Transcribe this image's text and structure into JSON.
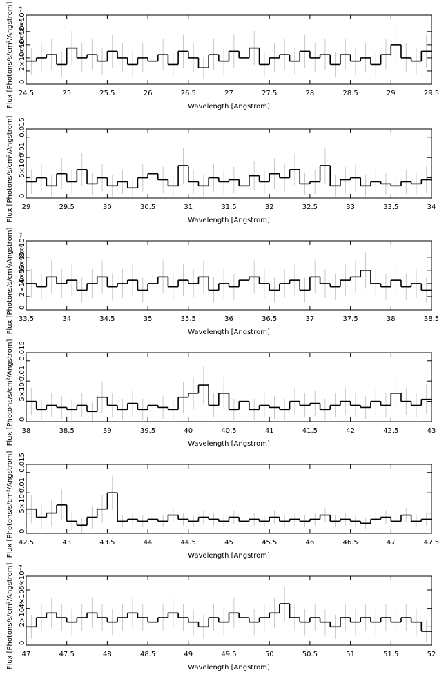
{
  "chart_data": [
    {
      "type": "histogram",
      "xlabel": "Wavelength [Angstrom]",
      "ylabel": "Flux [Photons/s/cm²/Angstrom]",
      "color": "#000000",
      "error_color": "#c8c8c8",
      "xlim": [
        24.5,
        29.5
      ],
      "xticks": [
        24.5,
        25,
        25.5,
        26,
        26.5,
        27,
        27.5,
        28,
        28.5,
        29,
        29.5
      ],
      "ylim": [
        0,
        0.0105
      ],
      "yticks": [
        0,
        {
          "value": 0.002,
          "label": "2×10⁻³"
        },
        {
          "value": 0.004,
          "label": "4×10⁻³"
        },
        {
          "value": 0.006,
          "label": "6×10⁻³"
        },
        {
          "value": 0.008,
          "label": "8×10⁻³"
        }
      ],
      "bins": [
        24.5,
        24.625,
        24.75,
        24.875,
        25,
        25.125,
        25.25,
        25.375,
        25.5,
        25.625,
        25.75,
        25.875,
        26,
        26.125,
        26.25,
        26.375,
        26.5,
        26.625,
        26.75,
        26.875,
        27,
        27.125,
        27.25,
        27.375,
        27.5,
        27.625,
        27.75,
        27.875,
        28,
        28.125,
        28.25,
        28.375,
        28.5,
        28.625,
        28.75,
        28.875,
        29,
        29.125,
        29.25,
        29.375,
        29.5
      ],
      "values": [
        0.0035,
        0.004,
        0.0045,
        0.003,
        0.0055,
        0.004,
        0.0045,
        0.0035,
        0.005,
        0.004,
        0.003,
        0.004,
        0.0035,
        0.0045,
        0.003,
        0.005,
        0.004,
        0.0025,
        0.0045,
        0.0035,
        0.005,
        0.004,
        0.0055,
        0.003,
        0.004,
        0.0045,
        0.0035,
        0.005,
        0.004,
        0.0045,
        0.003,
        0.0045,
        0.0035,
        0.004,
        0.003,
        0.0045,
        0.006,
        0.004,
        0.0035,
        0.005
      ],
      "errors": [
        0.002,
        0.0022,
        0.0024,
        0.0019,
        0.0026,
        0.0022,
        0.0023,
        0.002,
        0.0025,
        0.0022,
        0.0019,
        0.0022,
        0.002,
        0.0024,
        0.0019,
        0.0025,
        0.0022,
        0.0017,
        0.0024,
        0.002,
        0.0025,
        0.0022,
        0.0026,
        0.0019,
        0.0022,
        0.0024,
        0.002,
        0.0025,
        0.0022,
        0.0024,
        0.0019,
        0.0024,
        0.002,
        0.0022,
        0.0019,
        0.0024,
        0.0028,
        0.0022,
        0.002,
        0.0025
      ]
    },
    {
      "type": "histogram",
      "xlabel": "Wavelength [Angstrom]",
      "ylabel": "Flux [Photons/s/cm²/Angstrom]",
      "color": "#000000",
      "error_color": "#c8c8c8",
      "xlim": [
        29,
        34
      ],
      "xticks": [
        29,
        29.5,
        30,
        30.5,
        31,
        31.5,
        32,
        32.5,
        33,
        33.5,
        34
      ],
      "ylim": [
        0,
        0.017
      ],
      "yticks": [
        0,
        {
          "value": 0.005,
          "label": "5×10⁻³"
        },
        0.01,
        0.015
      ],
      "bins": [
        29,
        29.125,
        29.25,
        29.375,
        29.5,
        29.625,
        29.75,
        29.875,
        30,
        30.125,
        30.25,
        30.375,
        30.5,
        30.625,
        30.75,
        30.875,
        31,
        31.125,
        31.25,
        31.375,
        31.5,
        31.625,
        31.75,
        31.875,
        32,
        32.125,
        32.25,
        32.375,
        32.5,
        32.625,
        32.75,
        32.875,
        33,
        33.125,
        33.25,
        33.375,
        33.5,
        33.625,
        33.75,
        33.875,
        34
      ],
      "values": [
        0.004,
        0.005,
        0.003,
        0.006,
        0.004,
        0.007,
        0.0035,
        0.005,
        0.003,
        0.004,
        0.0025,
        0.005,
        0.006,
        0.0045,
        0.003,
        0.008,
        0.004,
        0.003,
        0.005,
        0.004,
        0.0045,
        0.003,
        0.0055,
        0.004,
        0.006,
        0.005,
        0.007,
        0.0035,
        0.004,
        0.008,
        0.003,
        0.0045,
        0.005,
        0.003,
        0.004,
        0.0035,
        0.003,
        0.004,
        0.0035,
        0.0045
      ],
      "errors": [
        0.003,
        0.0034,
        0.0026,
        0.0038,
        0.003,
        0.004,
        0.0028,
        0.0034,
        0.0026,
        0.003,
        0.0024,
        0.0034,
        0.0038,
        0.0032,
        0.0026,
        0.0044,
        0.003,
        0.0026,
        0.0034,
        0.003,
        0.0032,
        0.0026,
        0.0036,
        0.003,
        0.0038,
        0.0034,
        0.004,
        0.0028,
        0.003,
        0.0044,
        0.0026,
        0.0032,
        0.0034,
        0.0026,
        0.003,
        0.0028,
        0.0026,
        0.003,
        0.0028,
        0.0032
      ]
    },
    {
      "type": "histogram",
      "xlabel": "Wavelength [Angstrom]",
      "ylabel": "Flux [Photons/s/cm²/Angstrom]",
      "color": "#000000",
      "error_color": "#c8c8c8",
      "xlim": [
        33.5,
        38.5
      ],
      "xticks": [
        33.5,
        34,
        34.5,
        35,
        35.5,
        36,
        36.5,
        37,
        37.5,
        38,
        38.5
      ],
      "ylim": [
        0,
        0.0105
      ],
      "yticks": [
        0,
        {
          "value": 0.002,
          "label": "2×10⁻³"
        },
        {
          "value": 0.004,
          "label": "4×10⁻³"
        },
        {
          "value": 0.006,
          "label": "6×10⁻³"
        },
        {
          "value": 0.008,
          "label": "8×10⁻³"
        }
      ],
      "bins": [
        33.5,
        33.625,
        33.75,
        33.875,
        34,
        34.125,
        34.25,
        34.375,
        34.5,
        34.625,
        34.75,
        34.875,
        35,
        35.125,
        35.25,
        35.375,
        35.5,
        35.625,
        35.75,
        35.875,
        36,
        36.125,
        36.25,
        36.375,
        36.5,
        36.625,
        36.75,
        36.875,
        37,
        37.125,
        37.25,
        37.375,
        37.5,
        37.625,
        37.75,
        37.875,
        38,
        38.125,
        38.25,
        38.375,
        38.5
      ],
      "values": [
        0.004,
        0.0035,
        0.005,
        0.004,
        0.0045,
        0.003,
        0.004,
        0.005,
        0.0035,
        0.004,
        0.0045,
        0.003,
        0.004,
        0.005,
        0.0035,
        0.0045,
        0.004,
        0.005,
        0.003,
        0.004,
        0.0035,
        0.0045,
        0.005,
        0.004,
        0.003,
        0.004,
        0.0045,
        0.003,
        0.005,
        0.004,
        0.0035,
        0.0045,
        0.005,
        0.006,
        0.004,
        0.0035,
        0.0045,
        0.0035,
        0.004,
        0.003
      ],
      "errors": [
        0.0022,
        0.002,
        0.0025,
        0.0022,
        0.0024,
        0.0019,
        0.0022,
        0.0025,
        0.002,
        0.0022,
        0.0024,
        0.0019,
        0.0022,
        0.0025,
        0.002,
        0.0024,
        0.0022,
        0.0025,
        0.0019,
        0.0022,
        0.002,
        0.0024,
        0.0025,
        0.0022,
        0.0019,
        0.0022,
        0.0024,
        0.0019,
        0.0025,
        0.0022,
        0.002,
        0.0024,
        0.0025,
        0.0028,
        0.0022,
        0.002,
        0.0024,
        0.002,
        0.0022,
        0.0019
      ]
    },
    {
      "type": "histogram",
      "xlabel": "Wavelength [Angstrom]",
      "ylabel": "Flux [Photons/s/cm²/Angstrom]",
      "color": "#000000",
      "error_color": "#c8c8c8",
      "xlim": [
        38,
        43
      ],
      "xticks": [
        38,
        38.5,
        39,
        39.5,
        40,
        40.5,
        41,
        41.5,
        42,
        42.5,
        43
      ],
      "ylim": [
        0,
        0.017
      ],
      "yticks": [
        0,
        {
          "value": 0.005,
          "label": "5×10⁻³"
        },
        0.01,
        0.015
      ],
      "bins": [
        38,
        38.125,
        38.25,
        38.375,
        38.5,
        38.625,
        38.75,
        38.875,
        39,
        39.125,
        39.25,
        39.375,
        39.5,
        39.625,
        39.75,
        39.875,
        40,
        40.125,
        40.25,
        40.375,
        40.5,
        40.625,
        40.75,
        40.875,
        41,
        41.125,
        41.25,
        41.375,
        41.5,
        41.625,
        41.75,
        41.875,
        42,
        42.125,
        42.25,
        42.375,
        42.5,
        42.625,
        42.75,
        42.875,
        43
      ],
      "values": [
        0.005,
        0.003,
        0.004,
        0.0035,
        0.003,
        0.004,
        0.0025,
        0.006,
        0.004,
        0.003,
        0.0045,
        0.003,
        0.004,
        0.0035,
        0.003,
        0.006,
        0.007,
        0.009,
        0.004,
        0.007,
        0.003,
        0.005,
        0.003,
        0.004,
        0.0035,
        0.003,
        0.005,
        0.004,
        0.0045,
        0.003,
        0.004,
        0.005,
        0.004,
        0.0035,
        0.005,
        0.004,
        0.007,
        0.005,
        0.004,
        0.0055
      ],
      "errors": [
        0.0034,
        0.0026,
        0.003,
        0.0028,
        0.0026,
        0.003,
        0.0024,
        0.0038,
        0.003,
        0.0026,
        0.0032,
        0.0026,
        0.003,
        0.0028,
        0.0026,
        0.0038,
        0.004,
        0.0046,
        0.003,
        0.004,
        0.0026,
        0.0034,
        0.0026,
        0.003,
        0.0028,
        0.0026,
        0.0034,
        0.003,
        0.0032,
        0.0026,
        0.003,
        0.0034,
        0.003,
        0.0028,
        0.0034,
        0.003,
        0.004,
        0.0034,
        0.003,
        0.0036
      ]
    },
    {
      "type": "histogram",
      "xlabel": "Wavelength [Angstrom]",
      "ylabel": "Flux [Photons/s/cm²/Angstrom]",
      "color": "#000000",
      "error_color": "#c8c8c8",
      "xlim": [
        42.5,
        47.5
      ],
      "xticks": [
        42.5,
        43,
        43.5,
        44,
        44.5,
        45,
        45.5,
        46,
        46.5,
        47,
        47.5
      ],
      "ylim": [
        0,
        0.017
      ],
      "yticks": [
        0,
        {
          "value": 0.005,
          "label": "5×10⁻³"
        },
        0.01,
        0.015
      ],
      "bins": [
        42.5,
        42.625,
        42.75,
        42.875,
        43,
        43.125,
        43.25,
        43.375,
        43.5,
        43.625,
        43.75,
        43.875,
        44,
        44.125,
        44.25,
        44.375,
        44.5,
        44.625,
        44.75,
        44.875,
        45,
        45.125,
        45.25,
        45.375,
        45.5,
        45.625,
        45.75,
        45.875,
        46,
        46.125,
        46.25,
        46.375,
        46.5,
        46.625,
        46.75,
        46.875,
        47,
        47.125,
        47.25,
        47.375,
        47.5
      ],
      "values": [
        0.006,
        0.004,
        0.005,
        0.007,
        0.003,
        0.002,
        0.004,
        0.006,
        0.01,
        0.003,
        0.0035,
        0.003,
        0.0035,
        0.003,
        0.0045,
        0.0035,
        0.003,
        0.004,
        0.0035,
        0.003,
        0.004,
        0.003,
        0.0035,
        0.003,
        0.004,
        0.003,
        0.0035,
        0.003,
        0.0035,
        0.0045,
        0.003,
        0.0035,
        0.003,
        0.0025,
        0.0035,
        0.004,
        0.003,
        0.0045,
        0.003,
        0.0035
      ],
      "errors": [
        0.0035,
        0.003,
        0.0032,
        0.0038,
        0.0022,
        0.0018,
        0.0028,
        0.0034,
        0.0042,
        0.0015,
        0.0016,
        0.0015,
        0.0016,
        0.0015,
        0.0018,
        0.0016,
        0.0015,
        0.0017,
        0.0016,
        0.0015,
        0.0017,
        0.0015,
        0.0016,
        0.0015,
        0.0017,
        0.0015,
        0.0016,
        0.0015,
        0.0016,
        0.0018,
        0.0015,
        0.0016,
        0.0015,
        0.0014,
        0.0016,
        0.0017,
        0.0015,
        0.0018,
        0.0015,
        0.0016
      ]
    },
    {
      "type": "histogram",
      "xlabel": "Wavelength [Angstrom]",
      "ylabel": "Flux [Photons/s/cm²/Angstrom]",
      "color": "#000000",
      "error_color": "#c8c8c8",
      "xlim": [
        47,
        52
      ],
      "xticks": [
        47,
        47.5,
        48,
        48.5,
        49,
        49.5,
        50,
        50.5,
        51,
        51.5,
        52
      ],
      "ylim": [
        0,
        0.0075
      ],
      "yticks": [
        0,
        {
          "value": 0.002,
          "label": "2×10⁻³"
        },
        {
          "value": 0.004,
          "label": "4×10⁻³"
        },
        {
          "value": 0.006,
          "label": "6×10⁻³"
        }
      ],
      "bins": [
        47,
        47.125,
        47.25,
        47.375,
        47.5,
        47.625,
        47.75,
        47.875,
        48,
        48.125,
        48.25,
        48.375,
        48.5,
        48.625,
        48.75,
        48.875,
        49,
        49.125,
        49.25,
        49.375,
        49.5,
        49.625,
        49.75,
        49.875,
        50,
        50.125,
        50.25,
        50.375,
        50.5,
        50.625,
        50.75,
        50.875,
        51,
        51.125,
        51.25,
        51.375,
        51.5,
        51.625,
        51.75,
        51.875,
        52
      ],
      "values": [
        0.002,
        0.003,
        0.0035,
        0.003,
        0.0025,
        0.003,
        0.0035,
        0.003,
        0.0025,
        0.003,
        0.0035,
        0.003,
        0.0025,
        0.003,
        0.0035,
        0.003,
        0.0025,
        0.002,
        0.003,
        0.0025,
        0.0035,
        0.003,
        0.0025,
        0.003,
        0.0035,
        0.0045,
        0.003,
        0.0025,
        0.003,
        0.0025,
        0.002,
        0.003,
        0.0025,
        0.003,
        0.0025,
        0.003,
        0.0025,
        0.003,
        0.0025,
        0.0015
      ],
      "errors": [
        0.0013,
        0.0015,
        0.0016,
        0.0015,
        0.0014,
        0.0015,
        0.0016,
        0.0015,
        0.0014,
        0.0015,
        0.0016,
        0.0015,
        0.0014,
        0.0015,
        0.0016,
        0.0015,
        0.0014,
        0.0013,
        0.0015,
        0.0014,
        0.0016,
        0.0015,
        0.0014,
        0.0015,
        0.0016,
        0.0019,
        0.0015,
        0.0014,
        0.0015,
        0.0014,
        0.0013,
        0.0015,
        0.0014,
        0.0015,
        0.0014,
        0.0015,
        0.0014,
        0.0015,
        0.0014,
        0.0012
      ]
    }
  ]
}
